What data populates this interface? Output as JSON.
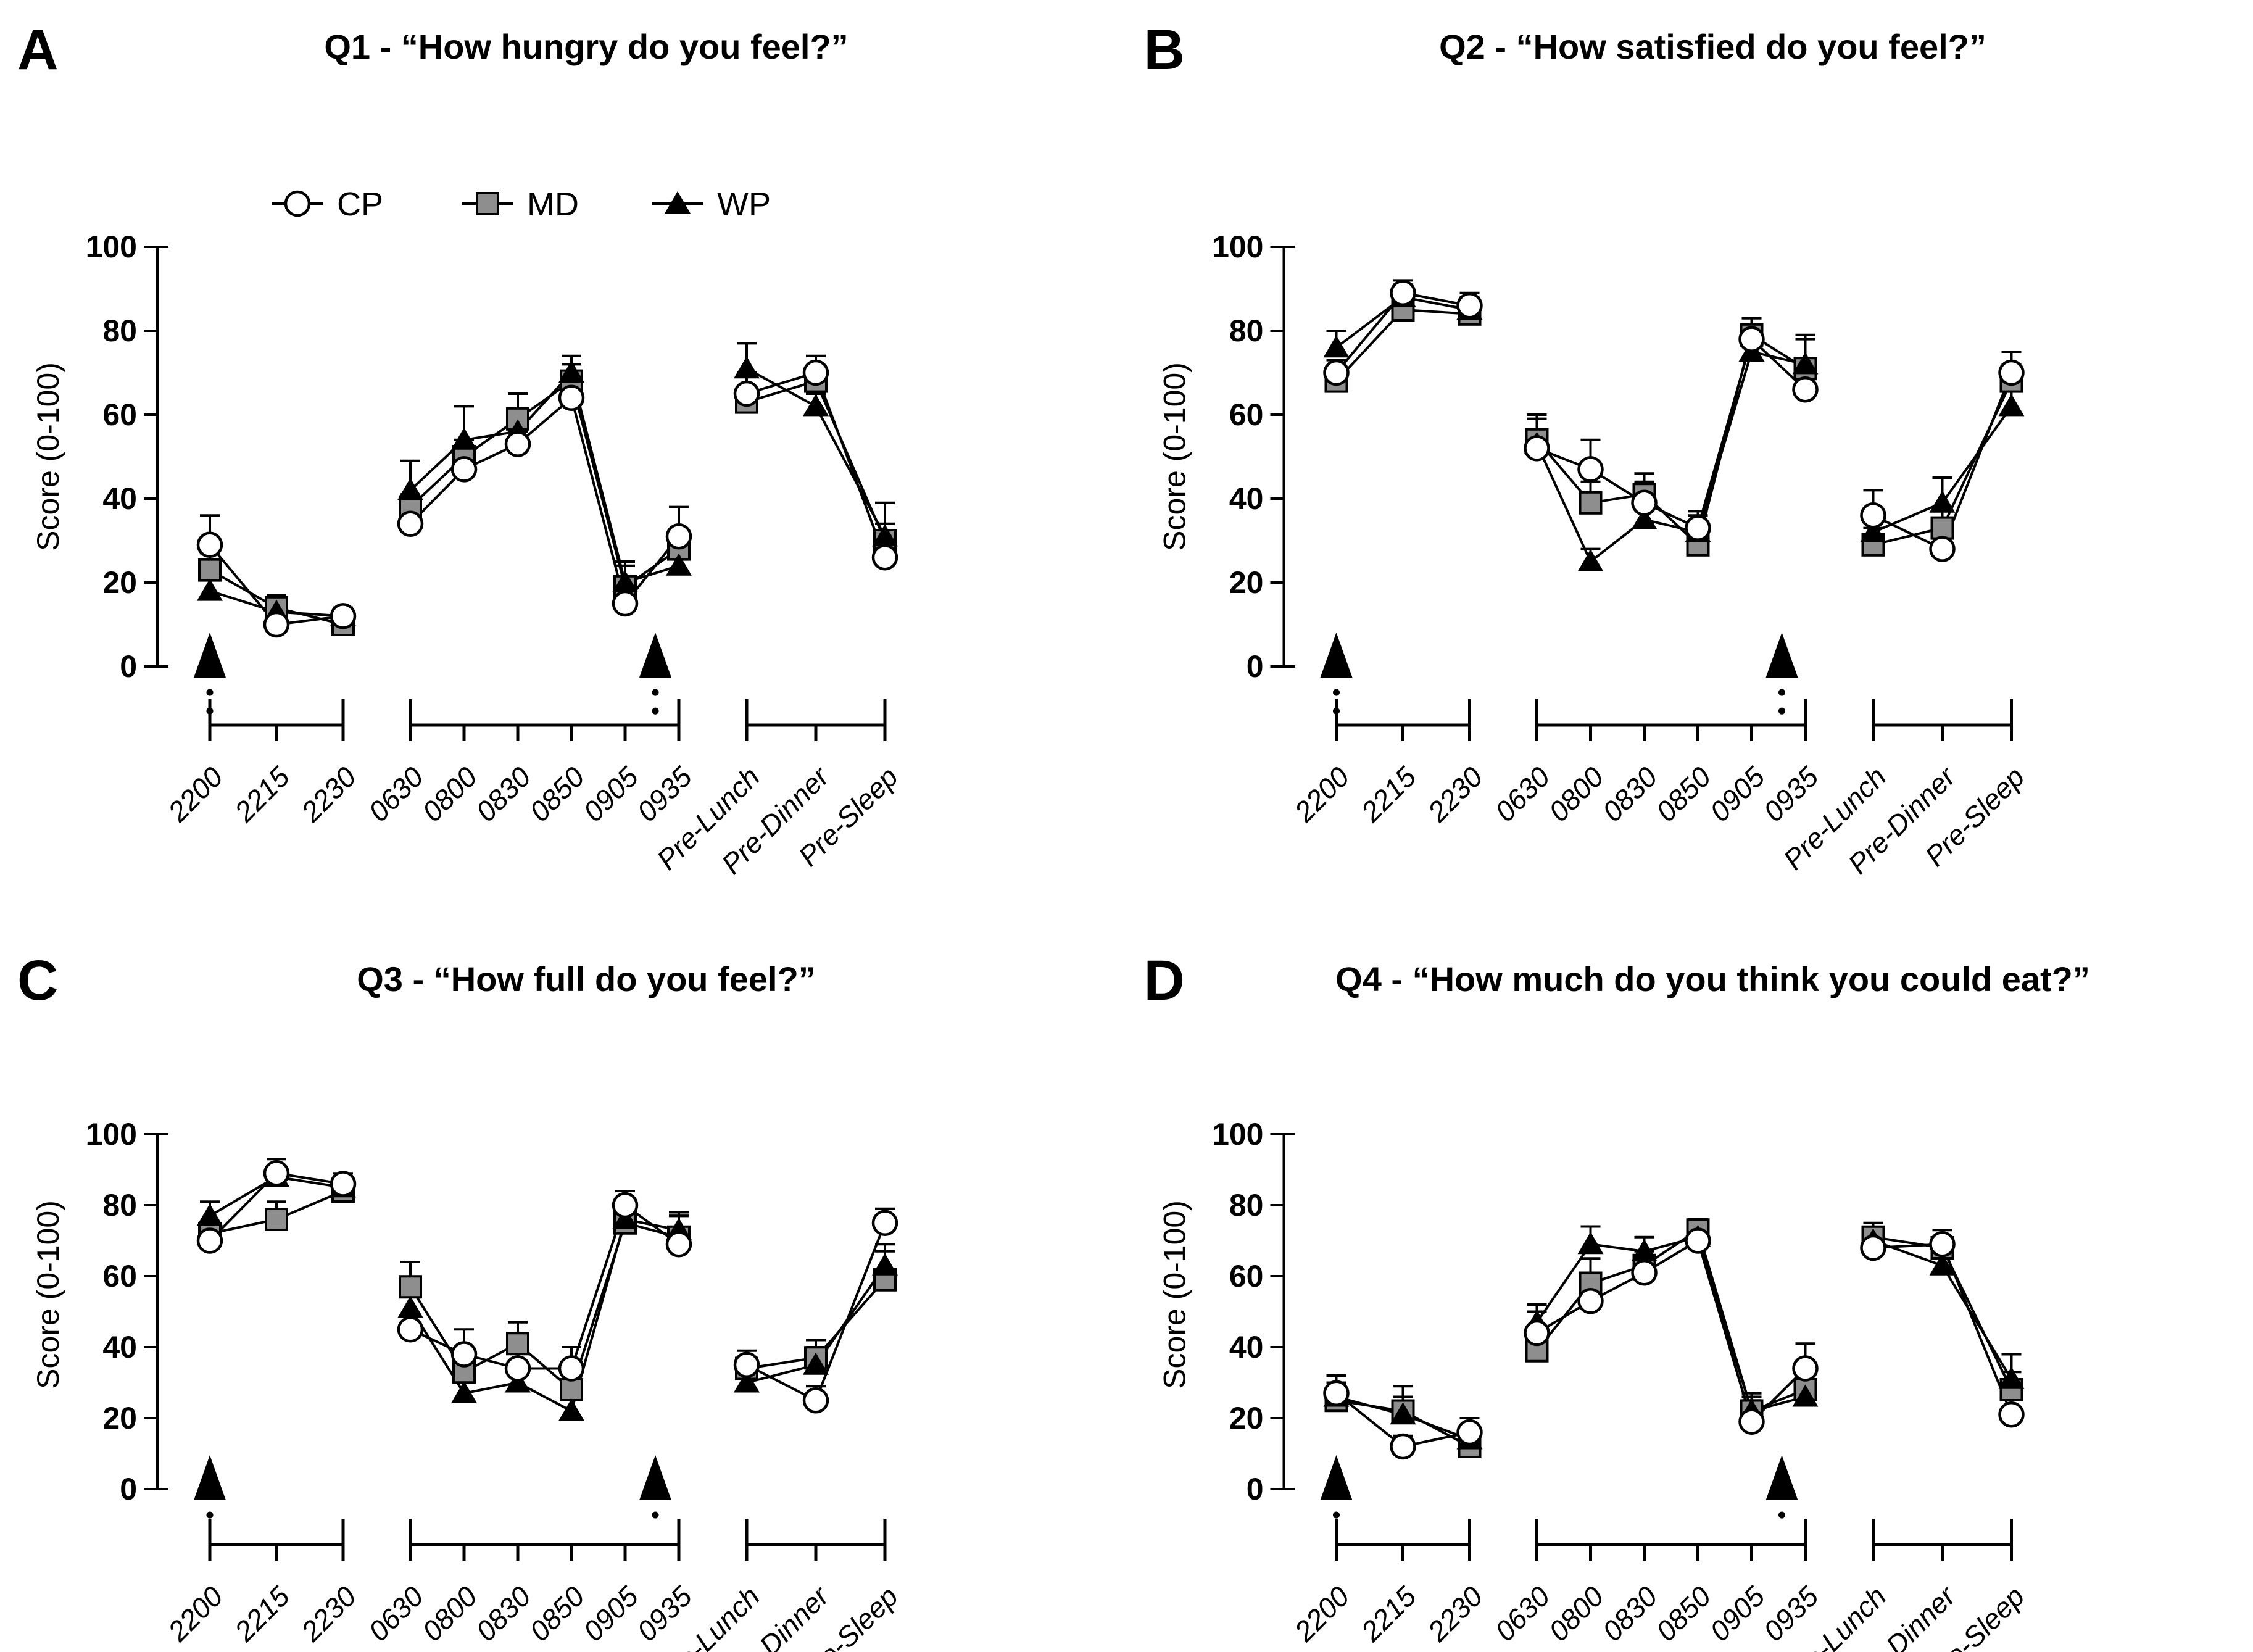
{
  "figure": {
    "background": "#ffffff"
  },
  "styles": {
    "line_color": "#000000",
    "circle_fill": "#ffffff",
    "square_fill": "#8e8e8e",
    "triangle_fill": "#000000",
    "marker_stroke": "#000000"
  },
  "legend": {
    "entries": [
      {
        "label": "CP",
        "marker": "circle"
      },
      {
        "label": "MD",
        "marker": "square"
      },
      {
        "label": "WP",
        "marker": "triangle"
      }
    ]
  },
  "chart_data": [
    {
      "panel_label": "A",
      "type": "line",
      "title": "Q1 - “How hungry do you feel?”",
      "ylabel": "Score (0-100)",
      "xlabel": "",
      "ylim": [
        0,
        100
      ],
      "yticks": [
        0,
        20,
        40,
        60,
        80,
        100
      ],
      "grid": false,
      "show_legend": true,
      "categories": [
        "2200",
        "2215",
        "2230",
        "0630",
        "0800",
        "0830",
        "0850",
        "0905",
        "0935",
        "Pre-Lunch",
        "Pre-Dinner",
        "Pre-Sleep"
      ],
      "segments": [
        [
          0,
          1,
          2
        ],
        [
          3,
          4,
          5,
          6,
          7,
          8
        ],
        [
          9,
          10,
          11
        ]
      ],
      "meal_arrows": [
        "2200",
        "0935"
      ],
      "series": [
        {
          "name": "MD",
          "marker": "square",
          "values": [
            23,
            14,
            10,
            38,
            50,
            59,
            68,
            19,
            28,
            63,
            68,
            30
          ],
          "errors": [
            4,
            3,
            2,
            3,
            4,
            6,
            4,
            5,
            4,
            3,
            3,
            4
          ]
        },
        {
          "name": "WP",
          "marker": "triangle",
          "values": [
            18,
            13,
            12,
            42,
            54,
            56,
            70,
            20,
            24,
            71,
            62,
            31
          ],
          "errors": [
            3,
            2,
            2,
            7,
            8,
            5,
            4,
            5,
            3,
            6,
            3,
            8
          ]
        },
        {
          "name": "CP",
          "marker": "circle",
          "values": [
            29,
            10,
            12,
            34,
            47,
            53,
            64,
            15,
            31,
            65,
            70,
            26
          ],
          "errors": [
            7,
            3,
            2,
            3,
            3,
            3,
            3,
            4,
            7,
            5,
            4,
            3
          ]
        }
      ]
    },
    {
      "panel_label": "B",
      "type": "line",
      "title": "Q2 - “How satisfied do you feel?”",
      "ylabel": "Score (0-100)",
      "xlabel": "",
      "ylim": [
        0,
        100
      ],
      "yticks": [
        0,
        20,
        40,
        60,
        80,
        100
      ],
      "grid": false,
      "show_legend": false,
      "categories": [
        "2200",
        "2215",
        "2230",
        "0630",
        "0800",
        "0830",
        "0850",
        "0905",
        "0935",
        "Pre-Lunch",
        "Pre-Dinner",
        "Pre-Sleep"
      ],
      "segments": [
        [
          0,
          1,
          2
        ],
        [
          3,
          4,
          5,
          6,
          7,
          8
        ],
        [
          9,
          10,
          11
        ]
      ],
      "meal_arrows": [
        "2200",
        "0935"
      ],
      "series": [
        {
          "name": "MD",
          "marker": "square",
          "values": [
            68,
            85,
            84,
            54,
            39,
            41,
            29,
            79,
            71,
            29,
            33,
            68
          ],
          "errors": [
            3,
            3,
            3,
            5,
            5,
            5,
            3,
            4,
            8,
            4,
            5,
            4
          ]
        },
        {
          "name": "WP",
          "marker": "triangle",
          "values": [
            76,
            88,
            85,
            53,
            25,
            35,
            32,
            75,
            72,
            32,
            39,
            62
          ],
          "errors": [
            4,
            3,
            3,
            6,
            3,
            5,
            4,
            4,
            6,
            4,
            6,
            4
          ]
        },
        {
          "name": "CP",
          "marker": "circle",
          "values": [
            70,
            89,
            86,
            52,
            47,
            39,
            33,
            78,
            66,
            36,
            28,
            70
          ],
          "errors": [
            3,
            3,
            3,
            8,
            7,
            5,
            4,
            5,
            4,
            6,
            3,
            5
          ]
        }
      ]
    },
    {
      "panel_label": "C",
      "type": "line",
      "title": "Q3 - “How full do you feel?”",
      "ylabel": "Score (0-100)",
      "xlabel": "",
      "ylim": [
        0,
        100
      ],
      "yticks": [
        0,
        20,
        40,
        60,
        80,
        100
      ],
      "grid": false,
      "show_legend": false,
      "categories": [
        "2200",
        "2215",
        "2230",
        "0630",
        "0800",
        "0830",
        "0850",
        "0905",
        "0935",
        "Pre-Lunch",
        "Pre-Dinner",
        "Pre-Sleep"
      ],
      "segments": [
        [
          0,
          1,
          2
        ],
        [
          3,
          4,
          5,
          6,
          7,
          8
        ],
        [
          9,
          10,
          11
        ]
      ],
      "meal_arrows": [
        "2200",
        "0935"
      ],
      "series": [
        {
          "name": "MD",
          "marker": "square",
          "values": [
            72,
            76,
            84,
            57,
            33,
            41,
            28,
            75,
            71,
            34,
            37,
            59
          ],
          "errors": [
            3,
            5,
            3,
            7,
            5,
            6,
            5,
            3,
            6,
            3,
            5,
            8
          ]
        },
        {
          "name": "WP",
          "marker": "triangle",
          "values": [
            77,
            88,
            85,
            51,
            27,
            30,
            22,
            76,
            73,
            30,
            35,
            63
          ],
          "errors": [
            4,
            3,
            3,
            4,
            4,
            5,
            4,
            4,
            5,
            3,
            5,
            6
          ]
        },
        {
          "name": "CP",
          "marker": "circle",
          "values": [
            70,
            89,
            86,
            45,
            38,
            34,
            34,
            80,
            69,
            35,
            25,
            75
          ],
          "errors": [
            3,
            4,
            3,
            4,
            7,
            5,
            6,
            4,
            8,
            4,
            4,
            4
          ]
        }
      ]
    },
    {
      "panel_label": "D",
      "type": "line",
      "title": "Q4 - “How much do you think you could eat?”",
      "ylabel": "Score (0-100)",
      "xlabel": "",
      "ylim": [
        0,
        100
      ],
      "yticks": [
        0,
        20,
        40,
        60,
        80,
        100
      ],
      "grid": false,
      "show_legend": false,
      "categories": [
        "2200",
        "2215",
        "2230",
        "0630",
        "0800",
        "0830",
        "0850",
        "0905",
        "0935",
        "Pre-Lunch",
        "Pre-Dinner",
        "Pre-Sleep"
      ],
      "segments": [
        [
          0,
          1,
          2
        ],
        [
          3,
          4,
          5,
          6,
          7,
          8
        ],
        [
          9,
          10,
          11
        ]
      ],
      "meal_arrows": [
        "2200",
        "0935"
      ],
      "series": [
        {
          "name": "MD",
          "marker": "square",
          "values": [
            25,
            22,
            12,
            39,
            58,
            63,
            73,
            22,
            28,
            71,
            68,
            28
          ],
          "errors": [
            4,
            7,
            3,
            5,
            7,
            4,
            3,
            4,
            5,
            4,
            3,
            5
          ]
        },
        {
          "name": "WP",
          "marker": "triangle",
          "values": [
            26,
            21,
            14,
            47,
            69,
            67,
            71,
            22,
            26,
            70,
            63,
            31
          ],
          "errors": [
            4,
            5,
            4,
            5,
            5,
            4,
            4,
            5,
            4,
            3,
            3,
            7
          ]
        },
        {
          "name": "CP",
          "marker": "circle",
          "values": [
            27,
            12,
            16,
            44,
            53,
            61,
            70,
            19,
            34,
            68,
            69,
            21
          ],
          "errors": [
            5,
            3,
            4,
            6,
            5,
            4,
            4,
            6,
            7,
            4,
            4,
            5
          ]
        }
      ]
    }
  ]
}
